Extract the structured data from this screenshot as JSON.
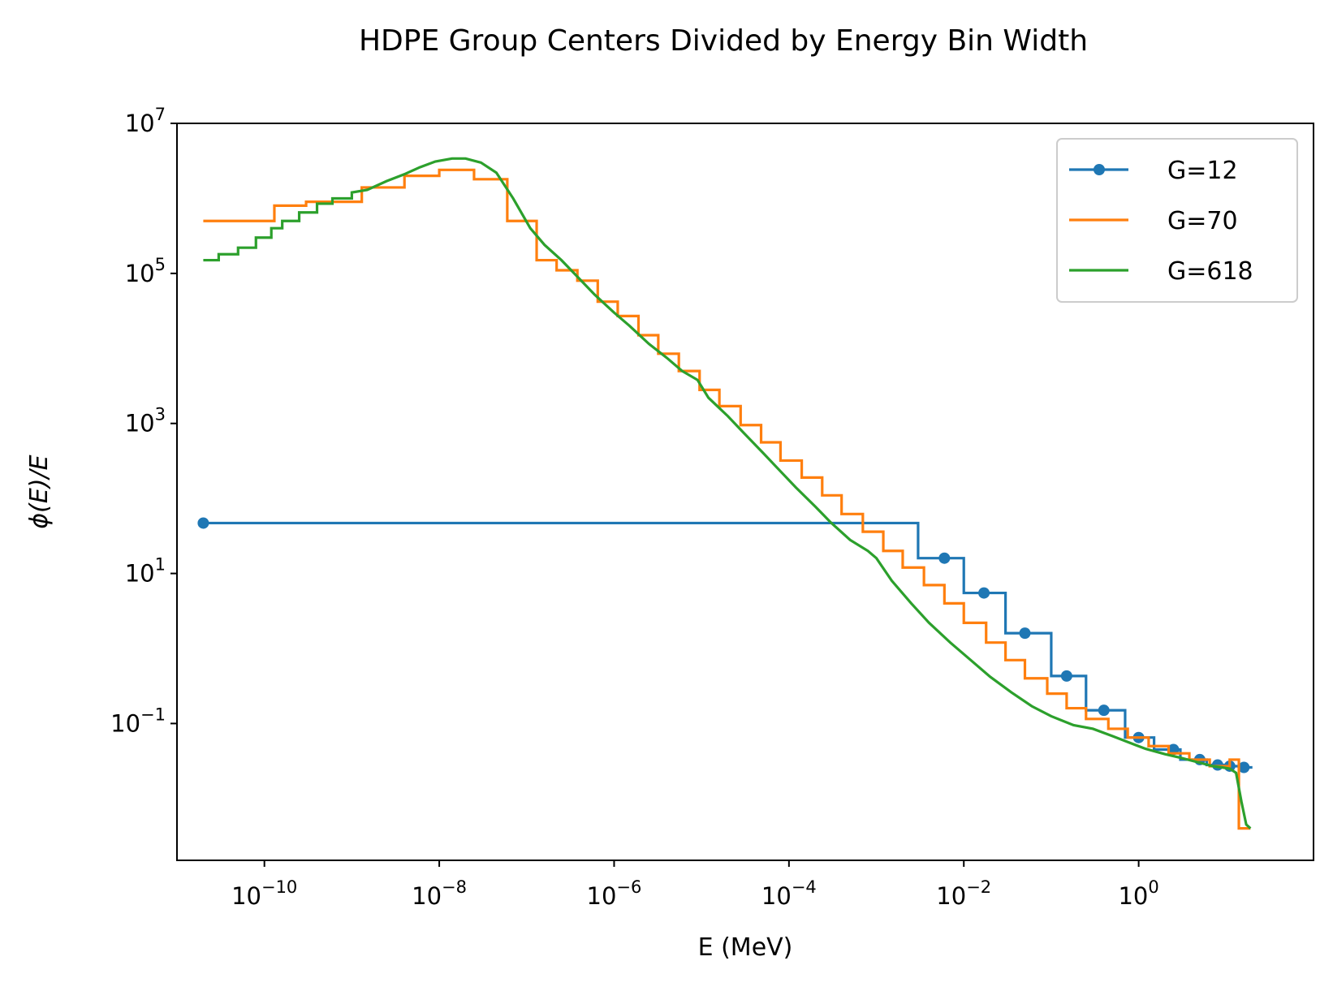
{
  "chart_data": {
    "type": "line",
    "title": "HDPE Group Centers Divided by Energy Bin Width",
    "xlabel": "E (MeV)",
    "ylabel": "ϕ(E)/E",
    "xscale": "log",
    "yscale": "log",
    "xlim": [
      1e-11,
      100.0
    ],
    "ylim": [
      0.0015,
      10000000.0
    ],
    "grid": false,
    "legend_position": "top-right",
    "x_ticks": [
      {
        "value": 1e-10,
        "base": "10",
        "exp": "−10"
      },
      {
        "value": 1e-08,
        "base": "10",
        "exp": "−8"
      },
      {
        "value": 1e-06,
        "base": "10",
        "exp": "−6"
      },
      {
        "value": 0.0001,
        "base": "10",
        "exp": "−4"
      },
      {
        "value": 0.01,
        "base": "10",
        "exp": "−2"
      },
      {
        "value": 1,
        "base": "10",
        "exp": "0"
      }
    ],
    "y_ticks": [
      {
        "value": 0.1,
        "base": "10",
        "exp": "−1"
      },
      {
        "value": 10,
        "base": "10",
        "exp": "1"
      },
      {
        "value": 1000,
        "base": "10",
        "exp": "3"
      },
      {
        "value": 100000,
        "base": "10",
        "exp": "5"
      },
      {
        "value": 10000000,
        "base": "10",
        "exp": "7"
      }
    ],
    "series": [
      {
        "name": "G=12",
        "color": "#1f77b4",
        "style": "step-with-markers",
        "edges": [
          2e-11,
          0.003,
          0.01,
          0.03,
          0.1,
          0.25,
          0.7,
          1.5,
          3,
          6,
          10,
          14,
          20
        ],
        "values": [
          47,
          16,
          5.5,
          1.6,
          0.43,
          0.15,
          0.065,
          0.045,
          0.033,
          0.028,
          0.027,
          0.026
        ],
        "markers": [
          {
            "x": 2e-11,
            "y": 47
          },
          {
            "x": 0.006,
            "y": 16
          },
          {
            "x": 0.017,
            "y": 5.5
          },
          {
            "x": 0.05,
            "y": 1.6
          },
          {
            "x": 0.15,
            "y": 0.43
          },
          {
            "x": 0.4,
            "y": 0.15
          },
          {
            "x": 1,
            "y": 0.065
          },
          {
            "x": 2.5,
            "y": 0.045
          },
          {
            "x": 5,
            "y": 0.033
          },
          {
            "x": 8,
            "y": 0.028
          },
          {
            "x": 11,
            "y": 0.027
          },
          {
            "x": 16,
            "y": 0.026
          }
        ]
      },
      {
        "name": "G=70",
        "color": "#ff7f0e",
        "style": "step",
        "points": [
          [
            2e-11,
            500000
          ],
          [
            1.3e-10,
            500000
          ],
          [
            1.3e-10,
            800000
          ],
          [
            3e-10,
            800000
          ],
          [
            3e-10,
            900000
          ],
          [
            1.3e-09,
            900000
          ],
          [
            1.3e-09,
            1400000
          ],
          [
            4e-09,
            1400000
          ],
          [
            4e-09,
            2000000
          ],
          [
            1e-08,
            2000000
          ],
          [
            1e-08,
            2400000
          ],
          [
            2.5e-08,
            2400000
          ],
          [
            2.5e-08,
            1800000
          ],
          [
            6e-08,
            1800000
          ],
          [
            6e-08,
            500000
          ],
          [
            1.3e-07,
            500000
          ],
          [
            1.3e-07,
            150000
          ],
          [
            2.2e-07,
            150000
          ],
          [
            2.2e-07,
            110000
          ],
          [
            3.8e-07,
            110000
          ],
          [
            3.8e-07,
            80000
          ],
          [
            6.5e-07,
            80000
          ],
          [
            6.5e-07,
            42000
          ],
          [
            1.1e-06,
            42000
          ],
          [
            1.1e-06,
            27000
          ],
          [
            1.9e-06,
            27000
          ],
          [
            1.9e-06,
            15000
          ],
          [
            3.2e-06,
            15000
          ],
          [
            3.2e-06,
            8500
          ],
          [
            5.5e-06,
            8500
          ],
          [
            5.5e-06,
            5000
          ],
          [
            9.5e-06,
            5000
          ],
          [
            9.5e-06,
            2800
          ],
          [
            1.6e-05,
            2800
          ],
          [
            1.6e-05,
            1700
          ],
          [
            2.8e-05,
            1700
          ],
          [
            2.8e-05,
            950
          ],
          [
            4.8e-05,
            950
          ],
          [
            4.8e-05,
            560
          ],
          [
            8e-05,
            560
          ],
          [
            8e-05,
            320
          ],
          [
            0.00014,
            320
          ],
          [
            0.00014,
            190
          ],
          [
            0.00024,
            190
          ],
          [
            0.00024,
            110
          ],
          [
            0.0004,
            110
          ],
          [
            0.0004,
            62
          ],
          [
            0.0007,
            62
          ],
          [
            0.0007,
            36
          ],
          [
            0.0012,
            36
          ],
          [
            0.0012,
            20
          ],
          [
            0.002,
            20
          ],
          [
            0.002,
            12
          ],
          [
            0.0035,
            12
          ],
          [
            0.0035,
            7
          ],
          [
            0.006,
            7
          ],
          [
            0.006,
            4
          ],
          [
            0.01,
            4
          ],
          [
            0.01,
            2.2
          ],
          [
            0.018,
            2.2
          ],
          [
            0.018,
            1.2
          ],
          [
            0.03,
            1.2
          ],
          [
            0.03,
            0.7
          ],
          [
            0.05,
            0.7
          ],
          [
            0.05,
            0.4
          ],
          [
            0.09,
            0.4
          ],
          [
            0.09,
            0.25
          ],
          [
            0.15,
            0.25
          ],
          [
            0.15,
            0.16
          ],
          [
            0.25,
            0.16
          ],
          [
            0.25,
            0.115
          ],
          [
            0.45,
            0.115
          ],
          [
            0.45,
            0.085
          ],
          [
            0.75,
            0.085
          ],
          [
            0.75,
            0.065
          ],
          [
            1.3,
            0.065
          ],
          [
            1.3,
            0.05
          ],
          [
            2.2,
            0.05
          ],
          [
            2.2,
            0.04
          ],
          [
            3.8,
            0.04
          ],
          [
            3.8,
            0.033
          ],
          [
            6.5,
            0.033
          ],
          [
            6.5,
            0.027
          ],
          [
            11,
            0.027
          ],
          [
            11,
            0.033
          ],
          [
            14,
            0.033
          ],
          [
            14,
            0.004
          ],
          [
            19,
            0.004
          ]
        ]
      },
      {
        "name": "G=618",
        "color": "#2ca02c",
        "style": "fine-step",
        "points": [
          [
            2e-11,
            150000
          ],
          [
            3e-11,
            150000
          ],
          [
            3e-11,
            180000
          ],
          [
            5e-11,
            180000
          ],
          [
            5e-11,
            220000
          ],
          [
            8e-11,
            220000
          ],
          [
            8e-11,
            300000
          ],
          [
            1.2e-10,
            300000
          ],
          [
            1.2e-10,
            400000
          ],
          [
            1.6e-10,
            400000
          ],
          [
            1.6e-10,
            500000
          ],
          [
            2.5e-10,
            500000
          ],
          [
            2.5e-10,
            650000
          ],
          [
            4e-10,
            650000
          ],
          [
            4e-10,
            850000
          ],
          [
            6e-10,
            850000
          ],
          [
            6e-10,
            1000000
          ],
          [
            1e-09,
            1000000
          ],
          [
            1e-09,
            1200000
          ],
          [
            1.5e-09,
            1300000
          ],
          [
            2.5e-09,
            1700000
          ],
          [
            4e-09,
            2100000
          ],
          [
            6e-09,
            2600000
          ],
          [
            9e-09,
            3100000
          ],
          [
            1.4e-08,
            3400000
          ],
          [
            2e-08,
            3400000
          ],
          [
            3e-08,
            3000000
          ],
          [
            4.5e-08,
            2200000
          ],
          [
            7e-08,
            1000000
          ],
          [
            1.1e-07,
            400000
          ],
          [
            1.6e-07,
            240000
          ],
          [
            2.5e-07,
            150000
          ],
          [
            4e-07,
            85000
          ],
          [
            6e-07,
            52000
          ],
          [
            1e-06,
            30000
          ],
          [
            1.5e-06,
            20000
          ],
          [
            2.5e-06,
            11500
          ],
          [
            4e-06,
            7500
          ],
          [
            6e-06,
            5000
          ],
          [
            9e-06,
            3800
          ],
          [
            1.2e-05,
            2200
          ],
          [
            2e-05,
            1250
          ],
          [
            3e-05,
            760
          ],
          [
            5e-05,
            410
          ],
          [
            8e-05,
            230
          ],
          [
            0.00012,
            140
          ],
          [
            0.0002,
            78
          ],
          [
            0.0003,
            48
          ],
          [
            0.0005,
            28
          ],
          [
            0.0008,
            20
          ],
          [
            0.001,
            16
          ],
          [
            0.0015,
            8
          ],
          [
            0.0025,
            4
          ],
          [
            0.004,
            2.2
          ],
          [
            0.007,
            1.2
          ],
          [
            0.012,
            0.7
          ],
          [
            0.02,
            0.42
          ],
          [
            0.035,
            0.26
          ],
          [
            0.06,
            0.17
          ],
          [
            0.1,
            0.125
          ],
          [
            0.18,
            0.095
          ],
          [
            0.3,
            0.085
          ],
          [
            0.5,
            0.068
          ],
          [
            0.8,
            0.055
          ],
          [
            1.2,
            0.046
          ],
          [
            2,
            0.039
          ],
          [
            3,
            0.035
          ],
          [
            5,
            0.03
          ],
          [
            7,
            0.027
          ],
          [
            9,
            0.026
          ],
          [
            11,
            0.025
          ],
          [
            13,
            0.022
          ],
          [
            15,
            0.009
          ],
          [
            17,
            0.0045
          ],
          [
            19,
            0.004
          ]
        ]
      }
    ]
  }
}
